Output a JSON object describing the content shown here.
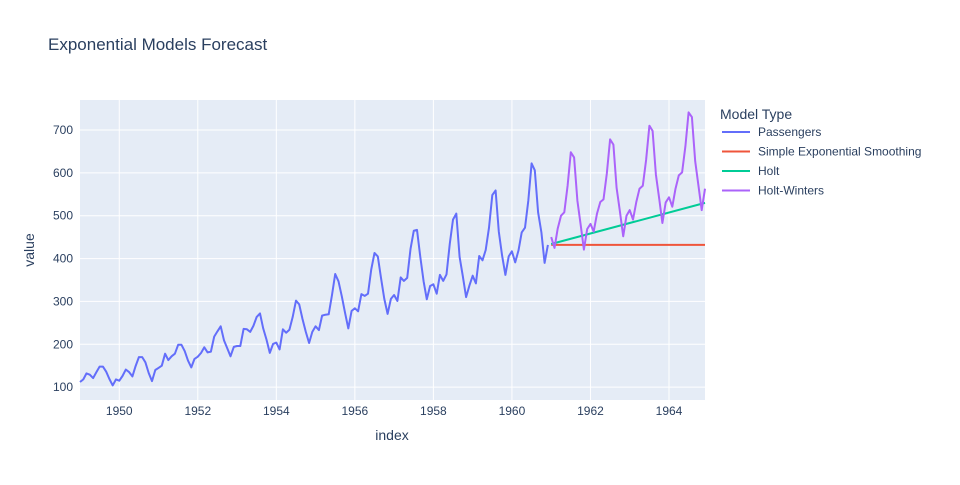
{
  "chart_data": {
    "type": "line",
    "title": "Exponential Models Forecast",
    "xlabel": "index",
    "ylabel": "value",
    "xlim": [
      1949.0,
      1964.917
    ],
    "ylim": [
      70,
      770
    ],
    "x_ticks": [
      1950,
      1952,
      1954,
      1956,
      1958,
      1960,
      1962,
      1964
    ],
    "y_ticks": [
      100,
      200,
      300,
      400,
      500,
      600,
      700
    ],
    "grid": true,
    "legend": {
      "title": "Model Type",
      "placement": "right"
    },
    "series": [
      {
        "name": "Passengers",
        "color": "#636efa",
        "x_start": 1949.0,
        "x_step": 0.083333,
        "values": [
          112,
          118,
          132,
          129,
          121,
          135,
          148,
          148,
          136,
          119,
          104,
          118,
          115,
          126,
          141,
          135,
          125,
          149,
          170,
          170,
          158,
          133,
          114,
          140,
          145,
          150,
          178,
          163,
          172,
          178,
          199,
          199,
          184,
          162,
          146,
          166,
          171,
          180,
          193,
          181,
          183,
          218,
          230,
          242,
          209,
          191,
          172,
          194,
          196,
          196,
          236,
          235,
          229,
          243,
          264,
          272,
          237,
          211,
          180,
          201,
          204,
          188,
          235,
          227,
          234,
          264,
          302,
          293,
          259,
          229,
          203,
          229,
          242,
          233,
          267,
          269,
          270,
          315,
          364,
          347,
          312,
          274,
          237,
          278,
          284,
          277,
          317,
          313,
          318,
          374,
          413,
          405,
          355,
          306,
          271,
          306,
          315,
          301,
          356,
          348,
          355,
          422,
          465,
          467,
          404,
          347,
          305,
          336,
          340,
          318,
          362,
          348,
          363,
          435,
          491,
          505,
          404,
          359,
          310,
          337,
          360,
          342,
          406,
          396,
          420,
          472,
          548,
          559,
          463,
          407,
          362,
          405,
          417,
          391,
          419,
          461,
          472,
          535,
          622,
          606,
          508,
          461,
          390,
          432
        ]
      },
      {
        "name": "Simple Exponential Smoothing",
        "color": "#ef553b",
        "x": [
          1961.0,
          1964.917
        ],
        "values": [
          431.8,
          431.8
        ]
      },
      {
        "name": "Holt",
        "color": "#00cc96",
        "x": [
          1961.0,
          1964.917
        ],
        "values": [
          434,
          530
        ]
      },
      {
        "name": "Holt-Winters",
        "color": "#ab63fa",
        "x_start": 1961.0,
        "x_step": 0.083333,
        "values": [
          450,
          425,
          470,
          500,
          508,
          570,
          648,
          636,
          535,
          480,
          421,
          469,
          481,
          463,
          505,
          532,
          538,
          598,
          678,
          666,
          565,
          510,
          452,
          500,
          513,
          491,
          532,
          563,
          570,
          630,
          710,
          698,
          596,
          540,
          483,
          531,
          543,
          521,
          563,
          594,
          601,
          662,
          741,
          730,
          627,
          571,
          513,
          563
        ]
      }
    ]
  }
}
